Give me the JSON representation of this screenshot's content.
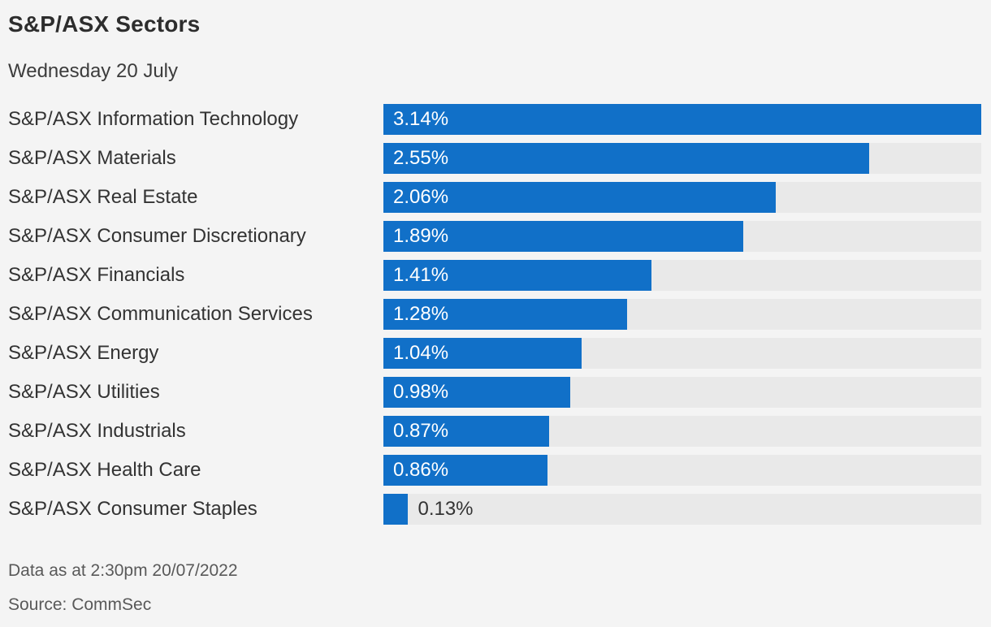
{
  "page": {
    "background_color": "#f4f4f4"
  },
  "chart_data": {
    "type": "bar",
    "orientation": "horizontal",
    "title": "S&P/ASX Sectors",
    "subtitle": "Wednesday 20 July",
    "categories": [
      "S&P/ASX Information Technology",
      "S&P/ASX Materials",
      "S&P/ASX Real Estate",
      "S&P/ASX Consumer Discretionary",
      "S&P/ASX Financials",
      "S&P/ASX Communication Services",
      "S&P/ASX Energy",
      "S&P/ASX Utilities",
      "S&P/ASX Industrials",
      "S&P/ASX Health Care",
      "S&P/ASX Consumer Staples"
    ],
    "values": [
      3.14,
      2.55,
      2.06,
      1.89,
      1.41,
      1.28,
      1.04,
      0.98,
      0.87,
      0.86,
      0.13
    ],
    "value_labels": [
      "3.14%",
      "2.55%",
      "2.06%",
      "1.89%",
      "1.41%",
      "1.28%",
      "1.04%",
      "0.98%",
      "0.87%",
      "0.86%",
      "0.13%"
    ],
    "xlabel": "",
    "ylabel": "",
    "xlim": [
      0,
      3.14
    ],
    "grid": false,
    "legend": false,
    "bar_color": "#1170C8",
    "track_color": "#e9e9e9",
    "footnote": "Data as at 2:30pm 20/07/2022",
    "source": "Source: CommSec"
  }
}
